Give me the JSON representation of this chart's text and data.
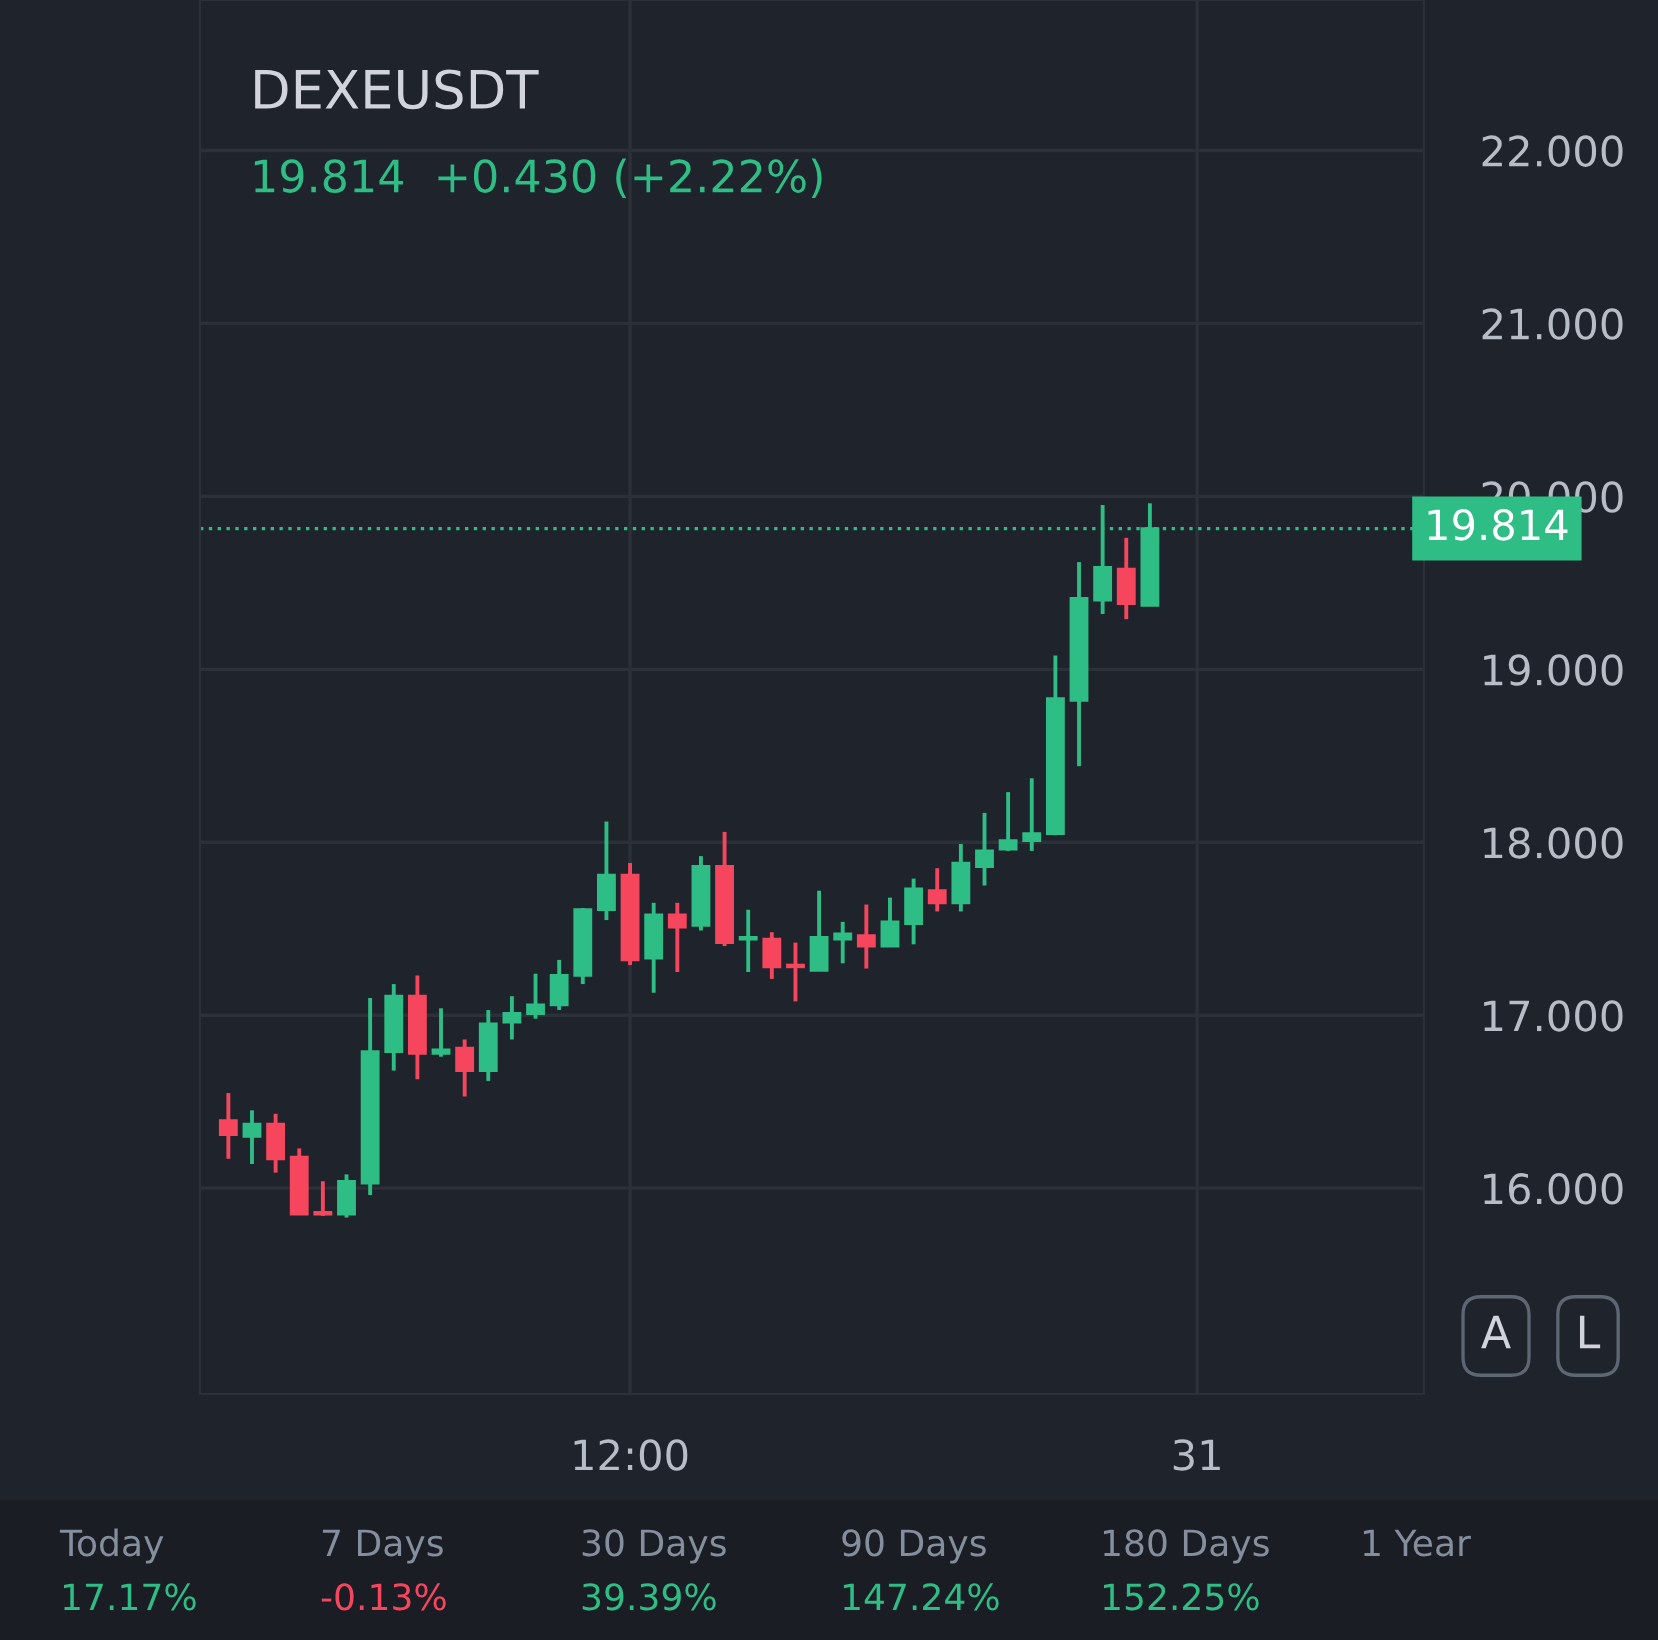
{
  "chart_data": {
    "type": "candlestick",
    "title": "DEXEUSDT",
    "subtitle": "19.814  +0.430 (+2.22%)",
    "categories": [
      null,
      null,
      null,
      null,
      null,
      null,
      null,
      null,
      null,
      null,
      null,
      null,
      null,
      null,
      null,
      null,
      null,
      "12:00",
      null,
      null,
      null,
      null,
      null,
      null,
      null,
      null,
      null,
      null,
      null,
      null,
      null,
      null,
      null,
      null,
      null,
      null,
      null,
      null,
      null,
      null,
      null,
      "31",
      null,
      null,
      null,
      null,
      null,
      null,
      null,
      null,
      null
    ],
    "ohlc": [
      [
        16.39,
        16.55,
        16.17,
        16.31
      ],
      [
        16.3,
        16.45,
        16.14,
        16.37
      ],
      [
        16.37,
        16.43,
        16.09,
        16.17
      ],
      [
        16.18,
        16.23,
        15.85,
        15.85
      ],
      [
        15.86,
        16.04,
        15.84,
        15.85
      ],
      [
        15.85,
        16.08,
        15.83,
        16.04
      ],
      [
        16.03,
        17.1,
        15.96,
        16.79
      ],
      [
        16.79,
        17.18,
        16.68,
        17.11
      ],
      [
        17.11,
        17.23,
        16.63,
        16.78
      ],
      [
        16.78,
        17.04,
        16.76,
        16.8
      ],
      [
        16.81,
        16.86,
        16.53,
        16.68
      ],
      [
        16.68,
        17.03,
        16.62,
        16.95
      ],
      [
        16.96,
        17.11,
        16.86,
        17.01
      ],
      [
        17.01,
        17.24,
        16.98,
        17.06
      ],
      [
        17.06,
        17.32,
        17.03,
        17.23
      ],
      [
        17.23,
        17.62,
        17.18,
        17.61
      ],
      [
        17.61,
        18.12,
        17.55,
        17.81
      ],
      [
        17.81,
        17.88,
        17.29,
        17.32
      ],
      [
        17.33,
        17.65,
        17.13,
        17.58
      ],
      [
        17.58,
        17.65,
        17.25,
        17.51
      ],
      [
        17.52,
        17.92,
        17.49,
        17.86
      ],
      [
        17.86,
        18.06,
        17.4,
        17.42
      ],
      [
        17.44,
        17.61,
        17.25,
        17.45
      ],
      [
        17.44,
        17.48,
        17.21,
        17.28
      ],
      [
        17.29,
        17.42,
        17.08,
        17.28
      ],
      [
        17.26,
        17.72,
        17.26,
        17.45
      ],
      [
        17.44,
        17.54,
        17.3,
        17.47
      ],
      [
        17.46,
        17.64,
        17.27,
        17.4
      ],
      [
        17.4,
        17.68,
        17.4,
        17.54
      ],
      [
        17.53,
        17.79,
        17.41,
        17.73
      ],
      [
        17.72,
        17.85,
        17.6,
        17.65
      ],
      [
        17.65,
        17.99,
        17.6,
        17.88
      ],
      [
        17.86,
        18.17,
        17.75,
        17.95
      ],
      [
        17.96,
        18.29,
        17.95,
        18.01
      ],
      [
        18.01,
        18.37,
        17.95,
        18.05
      ],
      [
        18.05,
        19.08,
        18.04,
        18.83
      ],
      [
        18.82,
        19.62,
        18.44,
        19.41
      ],
      [
        19.4,
        19.95,
        19.32,
        19.59
      ],
      [
        19.58,
        19.76,
        19.29,
        19.38
      ],
      [
        19.37,
        19.96,
        19.37,
        19.814
      ],
      null,
      null,
      null,
      null,
      null,
      null,
      null,
      null,
      null,
      null,
      null
    ],
    "colors": [
      "#f6465d",
      "#2ebd85",
      "#f6465d",
      "#f6465d",
      "#f6465d",
      "#2ebd85",
      "#2ebd85",
      "#2ebd85",
      "#f6465d",
      "#2ebd85",
      "#f6465d",
      "#2ebd85",
      "#2ebd85",
      "#2ebd85",
      "#2ebd85",
      "#2ebd85",
      "#2ebd85",
      "#f6465d",
      "#2ebd85",
      "#f6465d",
      "#2ebd85",
      "#f6465d",
      "#2ebd85",
      "#f6465d",
      "#f6465d",
      "#2ebd85",
      "#2ebd85",
      "#f6465d",
      "#2ebd85",
      "#2ebd85",
      "#f6465d",
      "#2ebd85",
      "#2ebd85",
      "#2ebd85",
      "#2ebd85",
      "#2ebd85",
      "#2ebd85",
      "#2ebd85",
      "#f6465d",
      "#2ebd85",
      null,
      null,
      null,
      null,
      null,
      null,
      null,
      null,
      null,
      null,
      null
    ],
    "ylim": [
      14.81,
      22.87
    ],
    "yticks": [
      {
        "value": 16,
        "label": "16.000"
      },
      {
        "value": 17,
        "label": "17.000"
      },
      {
        "value": 18,
        "label": "18.000"
      },
      {
        "value": 19,
        "label": "19.000"
      },
      {
        "value": 20,
        "label": "20.000"
      },
      {
        "value": 21,
        "label": "21.000"
      },
      {
        "value": 22,
        "label": "22.000"
      }
    ],
    "grid": true,
    "ref_lines": [
      {
        "axis": "y",
        "value": 19.814,
        "label": "19.814",
        "color": "#2ebd85",
        "line_style": "dotted"
      }
    ],
    "annotations": [
      "A",
      "L",
      "Today",
      "17.17%",
      "7 Days",
      "-0.13%",
      "30 Days",
      "39.39%",
      "90 Days",
      "147.24%",
      "180 Days",
      "152.25%",
      "1 Year"
    ]
  }
}
